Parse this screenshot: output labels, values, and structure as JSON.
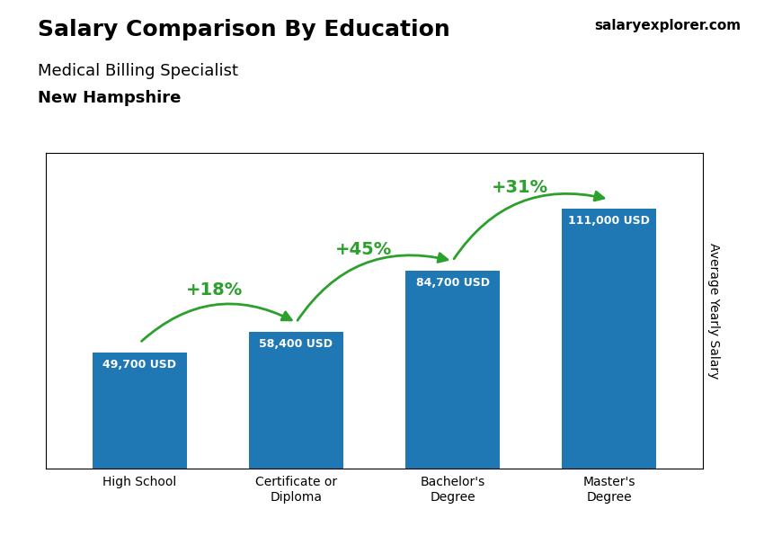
{
  "chart_data": {
    "type": "bar",
    "title": "Salary Comparison By Education",
    "subtitle": [
      "Medical Billing Specialist",
      "New Hampshire"
    ],
    "ylabel": "Average Yearly Salary",
    "categories": [
      "High School",
      "Certificate or\nDiploma",
      "Bachelor's\nDegree",
      "Master's\nDegree"
    ],
    "values": [
      49700,
      58400,
      84700,
      111000
    ],
    "value_labels": [
      "49,700 USD",
      "58,400 USD",
      "84,700 USD",
      "111,000 USD"
    ],
    "data_labels": true,
    "ylim": [
      0,
      135000
    ],
    "tick_labels": "x",
    "annotations": [
      {
        "text": "+18%",
        "between": [
          "High School",
          "Certificate or\nDiploma"
        ]
      },
      {
        "text": "+45%",
        "between": [
          "Certificate or\nDiploma",
          "Bachelor's\nDegree"
        ]
      },
      {
        "text": "+31%",
        "between": [
          "Bachelor's\nDegree",
          "Master's\nDegree"
        ]
      },
      {
        "text": "salaryexplorer.com"
      }
    ]
  }
}
